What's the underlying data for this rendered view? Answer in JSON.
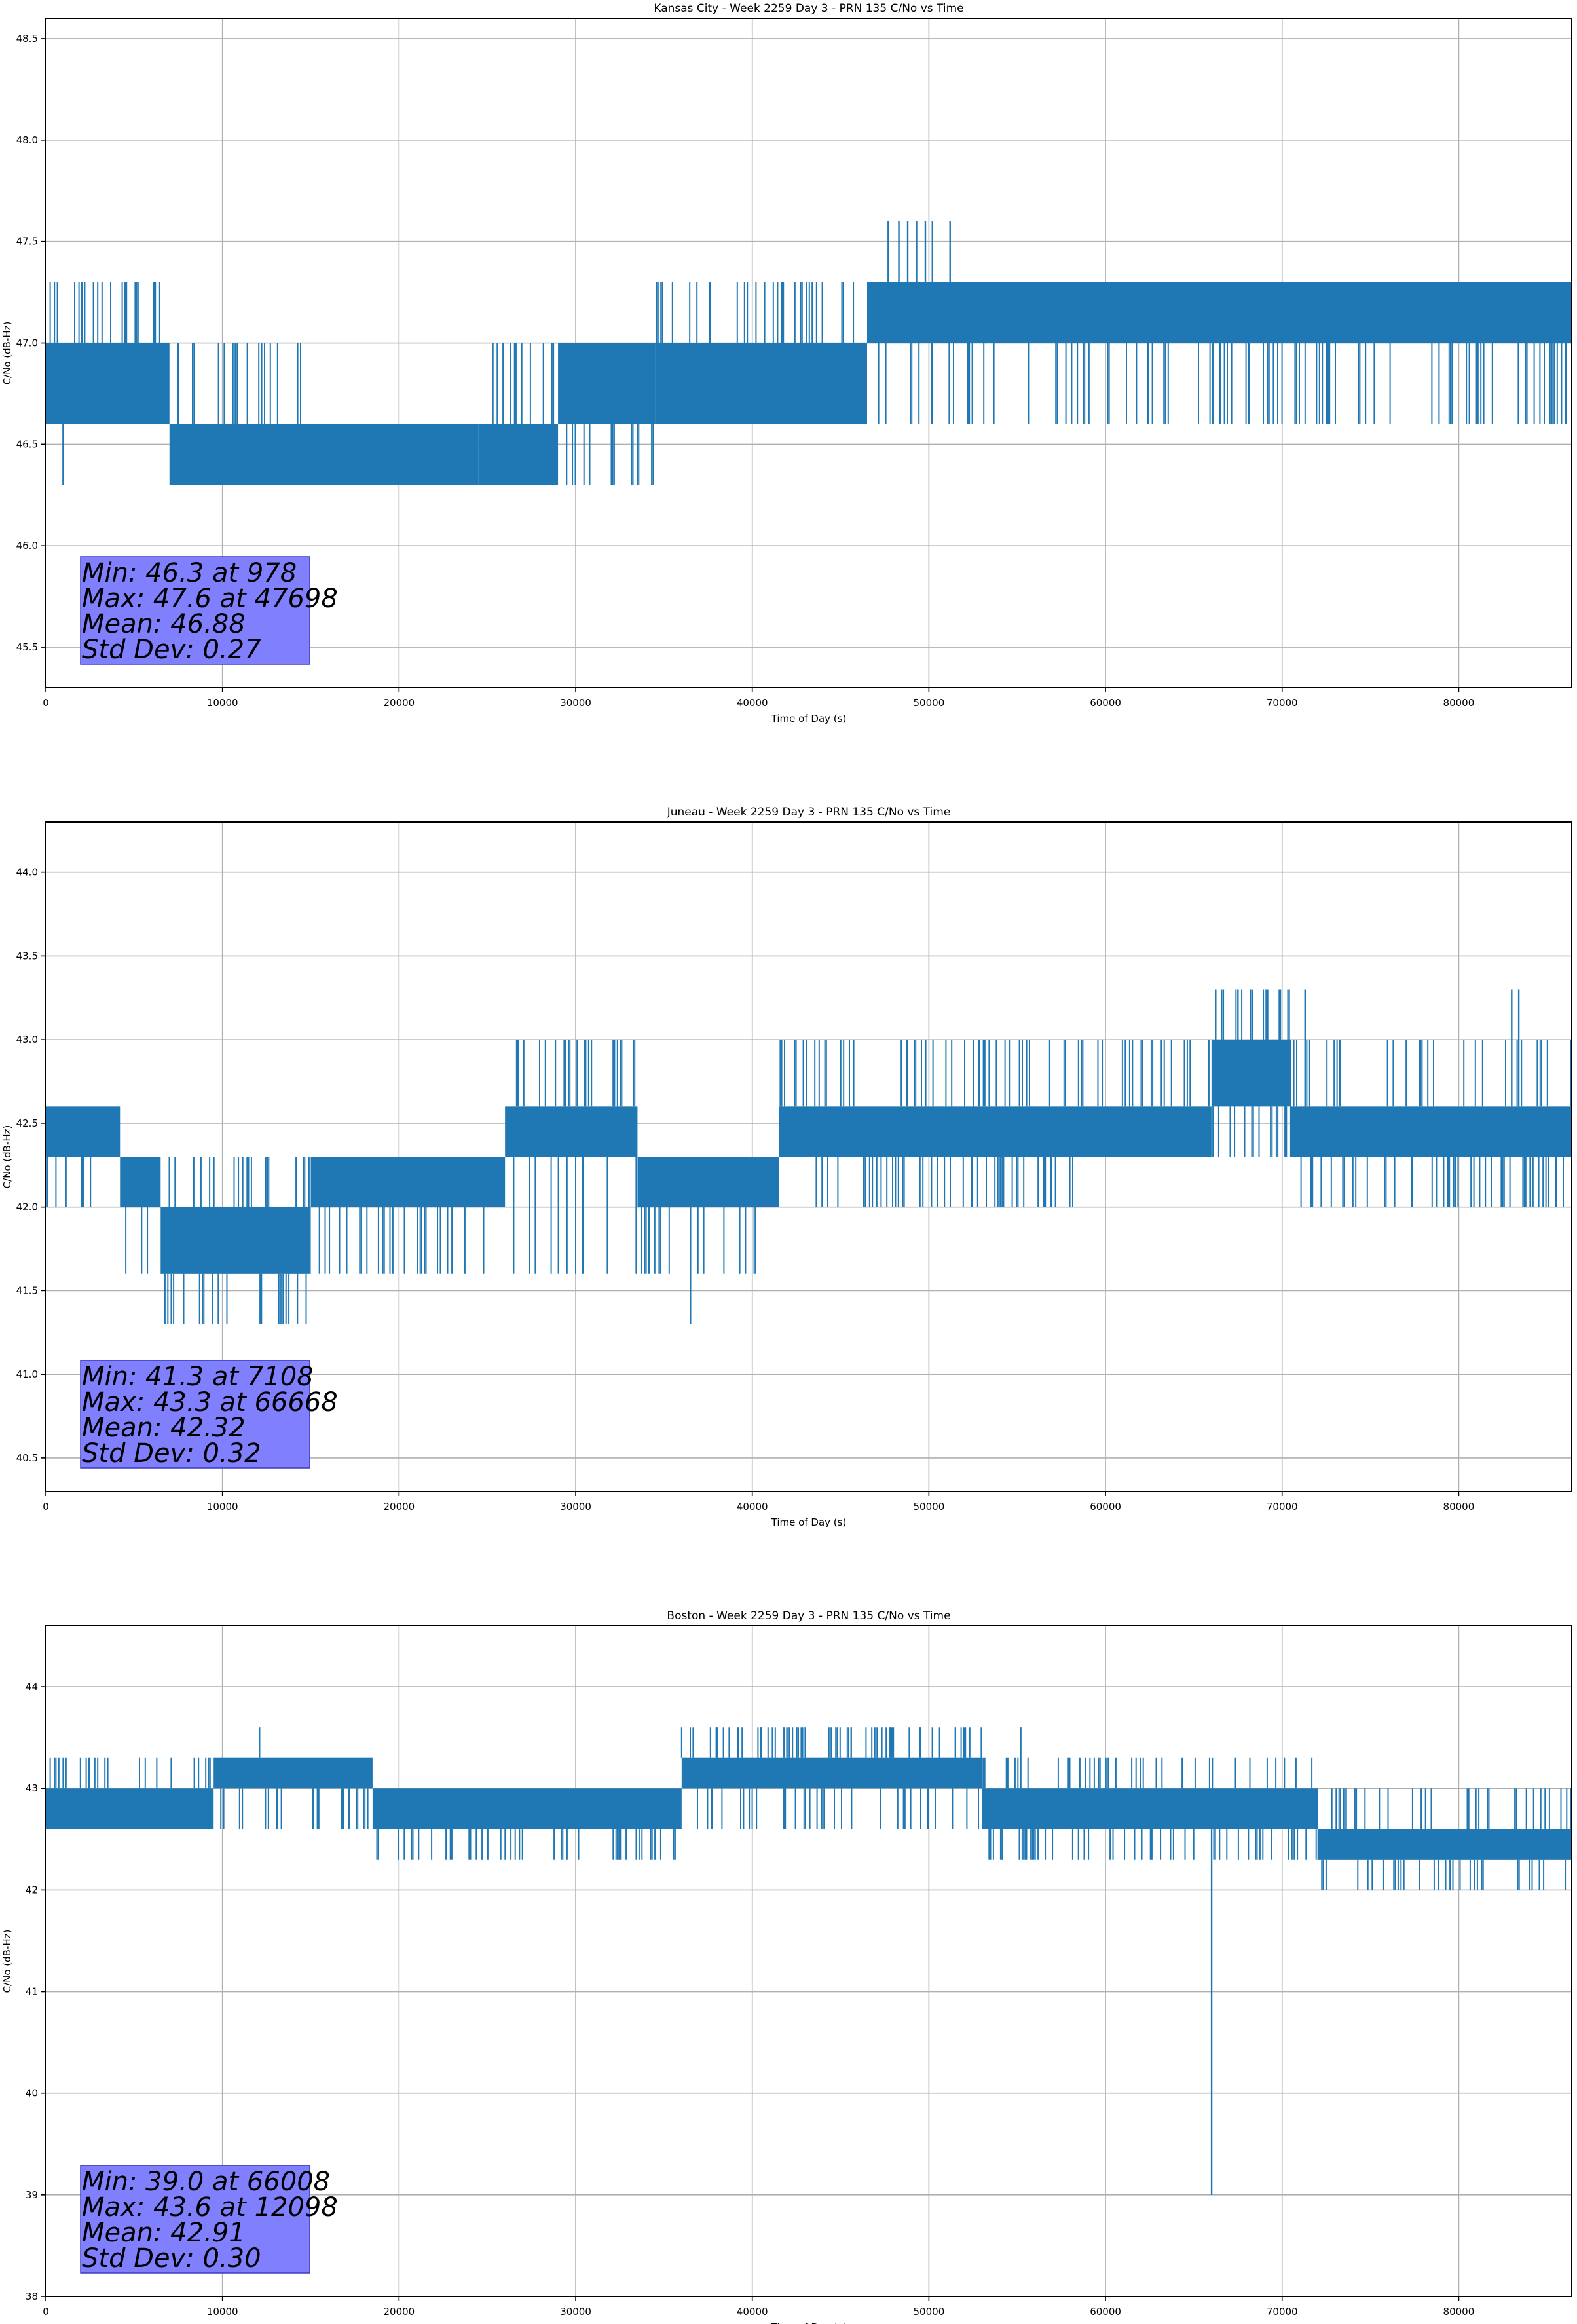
{
  "chart_data": [
    {
      "type": "line",
      "title": "Kansas City - Week 2259 Day 3 - PRN 135 C/No vs Time",
      "xlabel": "Time of Day (s)",
      "ylabel": "C/No (dB-Hz)",
      "xlim": [
        0,
        86400
      ],
      "ylim": [
        45.3,
        48.6
      ],
      "xticks": [
        0,
        10000,
        20000,
        30000,
        40000,
        50000,
        60000,
        70000,
        80000
      ],
      "yticks": [
        45.5,
        46.0,
        46.5,
        47.0,
        47.5,
        48.0,
        48.5
      ],
      "ytick_labels": [
        "45.5",
        "46.0",
        "46.5",
        "47.0",
        "47.5",
        "48.0",
        "48.5"
      ],
      "grid": true,
      "series_color": "#1f77b4",
      "stats": {
        "min_label": "Min: 46.3 at 978",
        "max_label": "Max: 47.6 at 47698",
        "mean_label": "Mean: 46.88",
        "std_label": "Std Dev: 0.27"
      },
      "segments": [
        {
          "x": [
            0,
            7000
          ],
          "low": 46.6,
          "high": 47.3,
          "core": [
            47.0,
            46.6
          ]
        },
        {
          "x": [
            7000,
            15500
          ],
          "low": 46.3,
          "high": 47.0,
          "core": [
            46.6,
            46.3
          ]
        },
        {
          "x": [
            15500,
            24500
          ],
          "low": 46.3,
          "high": 46.6,
          "core": [
            46.6,
            46.3
          ]
        },
        {
          "x": [
            24500,
            29000
          ],
          "low": 46.3,
          "high": 47.0,
          "core": [
            46.6,
            46.3
          ]
        },
        {
          "x": [
            29000,
            34500
          ],
          "low": 46.3,
          "high": 47.0,
          "core": [
            47.0,
            46.6
          ]
        },
        {
          "x": [
            34500,
            44500
          ],
          "low": 46.6,
          "high": 47.3,
          "core": [
            47.0,
            46.6
          ]
        },
        {
          "x": [
            44500,
            46500
          ],
          "low": 46.6,
          "high": 47.3,
          "core": [
            47.0,
            46.6
          ]
        },
        {
          "x": [
            46500,
            86400
          ],
          "low": 46.6,
          "high": 47.3,
          "core": [
            47.3,
            47.0
          ]
        }
      ],
      "spikes": [
        {
          "x": 978,
          "y": 46.3
        },
        {
          "x": 47698,
          "y": 47.6
        },
        {
          "x": 48300,
          "y": 47.6
        },
        {
          "x": 48800,
          "y": 47.6
        },
        {
          "x": 49300,
          "y": 47.6
        },
        {
          "x": 49800,
          "y": 47.6
        },
        {
          "x": 50200,
          "y": 47.6
        },
        {
          "x": 51200,
          "y": 47.6
        }
      ]
    },
    {
      "type": "line",
      "title": "Juneau - Week 2259 Day 3 - PRN 135 C/No vs Time",
      "xlabel": "Time of Day (s)",
      "ylabel": "C/No (dB-Hz)",
      "xlim": [
        0,
        86400
      ],
      "ylim": [
        40.3,
        44.3
      ],
      "xticks": [
        0,
        10000,
        20000,
        30000,
        40000,
        50000,
        60000,
        70000,
        80000
      ],
      "yticks": [
        40.5,
        41.0,
        41.5,
        42.0,
        42.5,
        43.0,
        43.5,
        44.0
      ],
      "ytick_labels": [
        "40.5",
        "41.0",
        "41.5",
        "42.0",
        "42.5",
        "43.0",
        "43.5",
        "44.0"
      ],
      "grid": true,
      "series_color": "#1f77b4",
      "stats": {
        "min_label": "Min: 41.3 at 7108",
        "max_label": "Max: 43.3 at 66668",
        "mean_label": "Mean: 42.32",
        "std_label": "Std Dev: 0.32"
      },
      "segments": [
        {
          "x": [
            0,
            4200
          ],
          "low": 42.0,
          "high": 42.6,
          "core": [
            42.6,
            42.3
          ]
        },
        {
          "x": [
            4200,
            6500
          ],
          "low": 41.6,
          "high": 42.3,
          "core": [
            42.3,
            42.0
          ]
        },
        {
          "x": [
            6500,
            15000
          ],
          "low": 41.3,
          "high": 42.3,
          "core": [
            42.0,
            41.6
          ]
        },
        {
          "x": [
            15000,
            26000
          ],
          "low": 41.6,
          "high": 42.3,
          "core": [
            42.3,
            42.0
          ]
        },
        {
          "x": [
            26000,
            33500
          ],
          "low": 41.6,
          "high": 43.0,
          "core": [
            42.6,
            42.3
          ]
        },
        {
          "x": [
            33500,
            41500
          ],
          "low": 41.6,
          "high": 42.3,
          "core": [
            42.3,
            42.0
          ]
        },
        {
          "x": [
            41500,
            59000
          ],
          "low": 42.0,
          "high": 43.0,
          "core": [
            42.6,
            42.3
          ]
        },
        {
          "x": [
            59000,
            66000
          ],
          "low": 42.3,
          "high": 43.0,
          "core": [
            42.6,
            42.3
          ]
        },
        {
          "x": [
            66000,
            70500
          ],
          "low": 42.3,
          "high": 43.3,
          "core": [
            43.0,
            42.6
          ]
        },
        {
          "x": [
            70500,
            86400
          ],
          "low": 42.0,
          "high": 43.0,
          "core": [
            42.6,
            42.3
          ]
        }
      ],
      "spikes": [
        {
          "x": 7108,
          "y": 41.3
        },
        {
          "x": 36500,
          "y": 41.3
        },
        {
          "x": 66668,
          "y": 43.3
        },
        {
          "x": 67500,
          "y": 43.3
        },
        {
          "x": 68300,
          "y": 43.3
        },
        {
          "x": 69100,
          "y": 43.3
        },
        {
          "x": 69900,
          "y": 43.3
        },
        {
          "x": 71300,
          "y": 43.3
        },
        {
          "x": 83000,
          "y": 43.3
        },
        {
          "x": 83400,
          "y": 43.3
        }
      ]
    },
    {
      "type": "line",
      "title": "Boston - Week 2259 Day 3 - PRN 135 C/No vs Time",
      "xlabel": "Time of Day (s)",
      "ylabel": "C/No (dB-Hz)",
      "xlim": [
        0,
        86400
      ],
      "ylim": [
        38.0,
        44.6
      ],
      "xticks": [
        0,
        10000,
        20000,
        30000,
        40000,
        50000,
        60000,
        70000,
        80000
      ],
      "yticks": [
        38,
        39,
        40,
        41,
        42,
        43,
        44
      ],
      "ytick_labels": [
        "38",
        "39",
        "40",
        "41",
        "42",
        "43",
        "44"
      ],
      "grid": true,
      "series_color": "#1f77b4",
      "stats": {
        "min_label": "Min: 39.0 at 66008",
        "max_label": "Max: 43.6 at 12098",
        "mean_label": "Mean: 42.91",
        "std_label": "Std Dev: 0.30"
      },
      "segments": [
        {
          "x": [
            0,
            9500
          ],
          "low": 42.6,
          "high": 43.3,
          "core": [
            43.0,
            42.6
          ]
        },
        {
          "x": [
            9500,
            18500
          ],
          "low": 42.6,
          "high": 43.3,
          "core": [
            43.3,
            43.0
          ]
        },
        {
          "x": [
            18500,
            36000
          ],
          "low": 42.3,
          "high": 43.0,
          "core": [
            43.0,
            42.6
          ]
        },
        {
          "x": [
            36000,
            53000
          ],
          "low": 42.6,
          "high": 43.6,
          "core": [
            43.3,
            43.0
          ]
        },
        {
          "x": [
            53000,
            72000
          ],
          "low": 42.3,
          "high": 43.3,
          "core": [
            43.0,
            42.6
          ]
        },
        {
          "x": [
            72000,
            86400
          ],
          "low": 42.0,
          "high": 43.0,
          "core": [
            42.6,
            42.3
          ]
        }
      ],
      "spikes": [
        {
          "x": 12098,
          "y": 43.6
        },
        {
          "x": 66008,
          "y": 39.0
        },
        {
          "x": 38000,
          "y": 43.6
        },
        {
          "x": 39200,
          "y": 43.6
        },
        {
          "x": 40500,
          "y": 43.6
        },
        {
          "x": 41800,
          "y": 43.6
        },
        {
          "x": 43000,
          "y": 43.6
        },
        {
          "x": 45600,
          "y": 43.6
        },
        {
          "x": 47800,
          "y": 43.6
        },
        {
          "x": 49500,
          "y": 43.6
        },
        {
          "x": 51500,
          "y": 43.6
        },
        {
          "x": 55200,
          "y": 43.6
        }
      ]
    }
  ]
}
